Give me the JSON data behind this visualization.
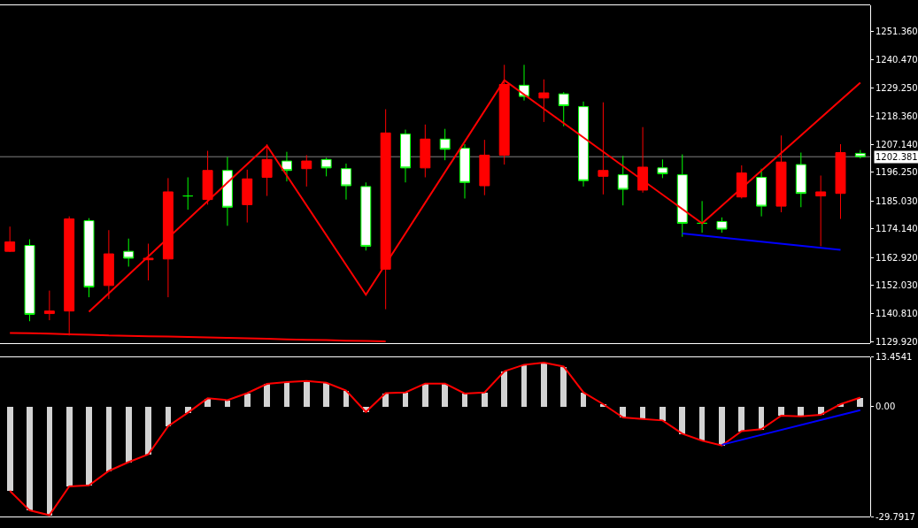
{
  "chart_data": [
    {
      "type": "candlestick",
      "categories": [
        null,
        null,
        null,
        null,
        null,
        null,
        null,
        null,
        null,
        null,
        null,
        null,
        null,
        null,
        null,
        null,
        null,
        null,
        null,
        null,
        null,
        null,
        null,
        null,
        null,
        null,
        null,
        null,
        null,
        null,
        null,
        null,
        null,
        null,
        null,
        null,
        null,
        null,
        null,
        null,
        null,
        null,
        null,
        null
      ],
      "ohlc": [
        [
          1165.3,
          1175.0,
          1165.0,
          1169.0
        ],
        [
          1167.6,
          1170.0,
          1137.9,
          1140.6
        ],
        [
          1140.9,
          1149.9,
          1138.3,
          1141.9
        ],
        [
          1141.9,
          1179.0,
          1132.3,
          1178.0
        ],
        [
          1177.3,
          1178.3,
          1147.3,
          1151.3
        ],
        [
          1151.9,
          1173.6,
          1146.6,
          1164.3
        ],
        [
          1165.3,
          1170.3,
          1159.3,
          1162.6
        ],
        [
          1162.0,
          1168.3,
          1153.9,
          1162.6
        ],
        [
          1162.3,
          1194.0,
          1147.3,
          1188.6
        ],
        [
          1187.0,
          1194.3,
          1181.6,
          1187.0
        ],
        [
          1185.6,
          1204.7,
          1183.6,
          1197.0
        ],
        [
          1197.0,
          1202.3,
          1175.3,
          1182.6
        ],
        [
          1183.6,
          1197.3,
          1176.6,
          1193.7
        ],
        [
          1194.3,
          1207.3,
          1187.0,
          1201.3
        ],
        [
          1200.7,
          1204.3,
          1192.7,
          1197.0
        ],
        [
          1197.7,
          1203.0,
          1190.7,
          1200.7
        ],
        [
          1201.3,
          1202.0,
          1194.7,
          1198.0
        ],
        [
          1197.7,
          1199.7,
          1185.6,
          1191.0
        ],
        [
          1190.7,
          1192.3,
          1165.6,
          1167.3
        ],
        [
          1158.3,
          1221.0,
          1142.6,
          1211.7
        ],
        [
          1211.3,
          1213.0,
          1192.3,
          1198.0
        ],
        [
          1198.0,
          1215.0,
          1194.3,
          1209.3
        ],
        [
          1209.3,
          1213.3,
          1201.0,
          1205.3
        ],
        [
          1205.7,
          1207.3,
          1186.0,
          1192.3
        ],
        [
          1191.0,
          1209.0,
          1187.3,
          1203.0
        ],
        [
          1203.0,
          1238.4,
          1199.3,
          1230.7
        ],
        [
          1230.4,
          1238.4,
          1224.4,
          1226.0
        ],
        [
          1225.4,
          1232.7,
          1216.0,
          1227.4
        ],
        [
          1227.0,
          1227.7,
          1214.3,
          1222.4
        ],
        [
          1222.0,
          1224.0,
          1190.7,
          1193.0
        ],
        [
          1194.7,
          1223.7,
          1187.6,
          1197.0
        ],
        [
          1195.3,
          1202.7,
          1183.3,
          1189.6
        ],
        [
          1189.3,
          1214.0,
          1188.3,
          1198.3
        ],
        [
          1198.0,
          1201.3,
          1194.0,
          1195.7
        ],
        [
          1195.3,
          1203.3,
          1171.0,
          1176.3
        ],
        [
          1176.3,
          1185.0,
          1172.6,
          1176.3
        ],
        [
          1177.0,
          1178.6,
          1172.6,
          1174.0
        ],
        [
          1186.6,
          1199.0,
          1186.0,
          1196.0
        ],
        [
          1194.3,
          1197.7,
          1179.0,
          1183.0
        ],
        [
          1183.0,
          1210.7,
          1180.6,
          1200.3
        ],
        [
          1199.3,
          1204.0,
          1182.6,
          1188.0
        ],
        [
          1187.0,
          1195.0,
          1167.3,
          1188.6
        ],
        [
          1188.0,
          1207.3,
          1178.0,
          1204.0
        ],
        [
          1203.7,
          1205.0,
          1201.7,
          1202.4
        ]
      ],
      "colors": [
        "#ff0000",
        "#00ff00",
        "#ff0000",
        "#ff0000",
        "#00ff00",
        "#ff0000",
        "#00ff00",
        "#ff0000",
        "#ff0000",
        "#00ff00",
        "#ff0000",
        "#00ff00",
        "#ff0000",
        "#ff0000",
        "#00ff00",
        "#ff0000",
        "#00ff00",
        "#00ff00",
        "#00ff00",
        "#ff0000",
        "#00ff00",
        "#ff0000",
        "#00ff00",
        "#00ff00",
        "#ff0000",
        "#ff0000",
        "#00ff00",
        "#ff0000",
        "#00ff00",
        "#00ff00",
        "#ff0000",
        "#00ff00",
        "#ff0000",
        "#00ff00",
        "#00ff00",
        "#00ff00",
        "#00ff00",
        "#ff0000",
        "#00ff00",
        "#ff0000",
        "#00ff00",
        "#ff0000",
        "#ff0000",
        "#00ff00"
      ],
      "series": [
        {
          "type": "line",
          "color": "#ff0000",
          "values": [
            1133.3,
            1133.2,
            1133.0,
            1132.8,
            1132.6,
            1132.3,
            1132.2,
            1132.0,
            1131.9,
            1131.7,
            1131.6,
            1131.4,
            1131.2,
            1131.0,
            1130.8,
            1130.6,
            1130.5,
            1130.3,
            1130.2,
            1130.0,
            null,
            null,
            null,
            null,
            null,
            null,
            null,
            null,
            null,
            null,
            null,
            null,
            null,
            null,
            null,
            null,
            null,
            null,
            null,
            null,
            null,
            null,
            null,
            null
          ]
        },
        {
          "type": "line",
          "color": "#ff0000",
          "values": [
            null,
            null,
            null,
            null,
            1141.6,
            null,
            null,
            null,
            null,
            null,
            null,
            null,
            null,
            1206.7,
            null,
            null,
            null,
            null,
            1148.3,
            null,
            null,
            null,
            null,
            null,
            null,
            1232.4,
            null,
            null,
            null,
            null,
            null,
            null,
            null,
            null,
            null,
            1176.3,
            null,
            null,
            null,
            null,
            null,
            null,
            null,
            1231.4
          ]
        },
        {
          "type": "line",
          "color": "#0000ff",
          "values": [
            null,
            null,
            null,
            null,
            null,
            null,
            null,
            null,
            null,
            null,
            null,
            null,
            null,
            null,
            null,
            null,
            null,
            null,
            null,
            null,
            null,
            null,
            null,
            null,
            null,
            null,
            null,
            null,
            null,
            null,
            null,
            null,
            null,
            null,
            1172.3,
            null,
            null,
            null,
            null,
            null,
            null,
            null,
            1165.9,
            null
          ]
        }
      ],
      "ylim": [
        1129.25,
        1261.73
      ],
      "yticks": [
        {
          "value": 1129.92,
          "label": "1129.920"
        },
        {
          "value": 1140.81,
          "label": "1140.810"
        },
        {
          "value": 1152.03,
          "label": "1152.030"
        },
        {
          "value": 1162.92,
          "label": "1162.920"
        },
        {
          "value": 1174.14,
          "label": "1174.140"
        },
        {
          "value": 1185.03,
          "label": "1185.030"
        },
        {
          "value": 1196.25,
          "label": "1196.250"
        },
        {
          "value": 1207.14,
          "label": "1207.140"
        },
        {
          "value": 1218.36,
          "label": "1218.360"
        },
        {
          "value": 1229.25,
          "label": "1229.250"
        },
        {
          "value": 1240.47,
          "label": "1240.470"
        },
        {
          "value": 1251.36,
          "label": "1251.360"
        }
      ],
      "ref_lines": [
        {
          "axis": "y",
          "value": 1202.381,
          "label": "1202.381",
          "color": "#808080"
        }
      ],
      "tick_labels": "y"
    },
    {
      "type": "bar",
      "categories": [
        null,
        null,
        null,
        null,
        null,
        null,
        null,
        null,
        null,
        null,
        null,
        null,
        null,
        null,
        null,
        null,
        null,
        null,
        null,
        null,
        null,
        null,
        null,
        null,
        null,
        null,
        null,
        null,
        null,
        null,
        null,
        null,
        null,
        null,
        null,
        null,
        null,
        null,
        null,
        null,
        null,
        null,
        null,
        null
      ],
      "series": [
        {
          "type": "bar",
          "color": "#d3d3d3",
          "values": [
            -22.8,
            -28.1,
            -29.4,
            -21.6,
            -21.3,
            -17.4,
            -15.0,
            -12.9,
            -5.3,
            -1.6,
            2.3,
            1.8,
            3.7,
            6.2,
            6.7,
            7.0,
            6.5,
            4.4,
            -1.4,
            3.7,
            3.9,
            6.3,
            6.3,
            3.6,
            3.9,
            9.6,
            11.4,
            12.0,
            10.9,
            3.9,
            0.7,
            -2.9,
            -3.3,
            -3.7,
            -7.3,
            -9.2,
            -10.5,
            -6.6,
            -6.1,
            -2.4,
            -2.6,
            -2.2,
            0.7,
            2.5
          ]
        },
        {
          "type": "line",
          "color": "#ff0000",
          "values": [
            -22.8,
            -28.1,
            -29.4,
            -21.6,
            -21.3,
            -17.4,
            -15.0,
            -12.9,
            -5.3,
            -1.6,
            2.3,
            1.8,
            3.7,
            6.2,
            6.7,
            7.0,
            6.5,
            4.4,
            -1.4,
            3.7,
            3.9,
            6.3,
            6.3,
            3.6,
            3.9,
            9.6,
            11.4,
            12.0,
            10.9,
            3.9,
            0.7,
            -2.9,
            -3.3,
            -3.7,
            -7.3,
            -9.2,
            -10.5,
            -6.6,
            -6.1,
            -2.4,
            -2.6,
            -2.2,
            0.7,
            2.5
          ]
        },
        {
          "type": "line",
          "color": "#0000ff",
          "values": [
            null,
            null,
            null,
            null,
            null,
            null,
            null,
            null,
            null,
            null,
            null,
            null,
            null,
            null,
            null,
            null,
            null,
            null,
            null,
            null,
            null,
            null,
            null,
            null,
            null,
            null,
            null,
            null,
            null,
            null,
            null,
            null,
            null,
            null,
            null,
            null,
            -10.3,
            null,
            null,
            null,
            null,
            null,
            null,
            -0.9
          ]
        }
      ],
      "ylim": [
        -29.7917,
        13.4541
      ],
      "yticks": [
        {
          "value": -29.7917,
          "label": "-29.7917"
        },
        {
          "value": 0,
          "label": "0.00"
        },
        {
          "value": 13.4541,
          "label": "13.4541"
        }
      ],
      "tick_labels": "y"
    }
  ]
}
